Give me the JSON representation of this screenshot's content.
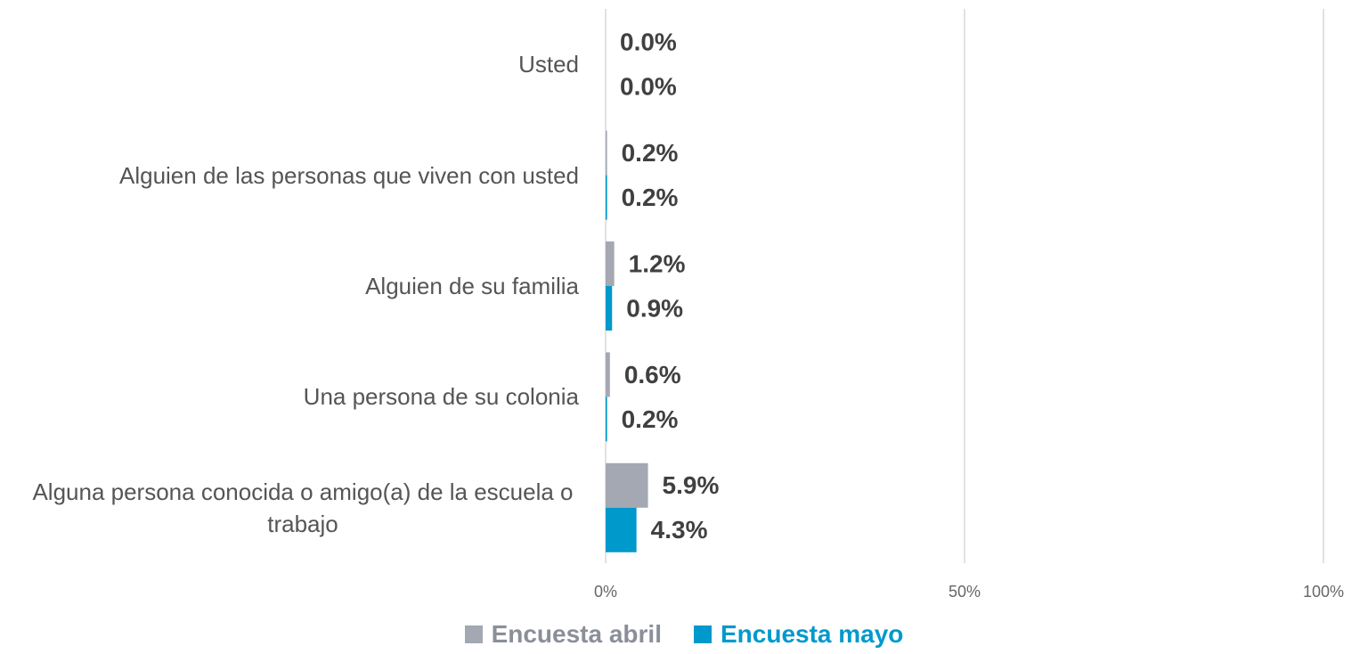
{
  "chart_data": {
    "type": "hbar",
    "categories": [
      "Usted",
      "Alguien de las personas que viven con usted",
      "Alguien de su familia",
      "Una persona de su colonia",
      "Alguna persona conocida o amigo(a) de la escuela o trabajo"
    ],
    "series": [
      {
        "name": "Encuesta abril",
        "color": "#a3a8b3",
        "values": [
          0.0,
          0.2,
          1.2,
          0.6,
          5.9
        ],
        "value_labels": [
          "0.0%",
          "0.2%",
          "1.2%",
          "0.6%",
          "5.9%"
        ]
      },
      {
        "name": "Encuesta mayo",
        "color": "#0099cc",
        "values": [
          0.0,
          0.2,
          0.9,
          0.2,
          4.3
        ],
        "value_labels": [
          "0.0%",
          "0.2%",
          "0.9%",
          "0.2%",
          "4.3%"
        ]
      }
    ],
    "xlim": [
      0,
      100
    ],
    "xticks": [
      {
        "value": 0,
        "label": "0%"
      },
      {
        "value": 50,
        "label": "50%"
      },
      {
        "value": 100,
        "label": "100%"
      }
    ],
    "grid": true,
    "legend": "bottom"
  }
}
